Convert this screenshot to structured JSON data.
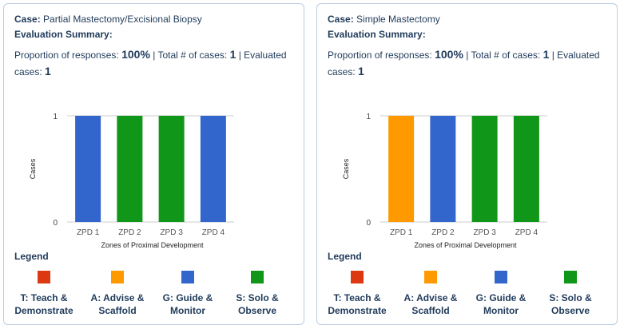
{
  "cards": [
    {
      "case_label": "Case:",
      "case_name": "Partial Mastectomy/Excisional Biopsy",
      "eval_title": "Evaluation Summary:",
      "stats": {
        "proportion_label": "Proportion of responses:",
        "proportion_value": "100%",
        "sep1": "|",
        "total_label": "Total # of cases:",
        "total_value": "1",
        "sep2": "|",
        "evaluated_label": "Evaluated cases:",
        "evaluated_value": "1"
      },
      "legend_title": "Legend"
    },
    {
      "case_label": "Case:",
      "case_name": "Simple Mastectomy",
      "eval_title": "Evaluation Summary:",
      "stats": {
        "proportion_label": "Proportion of responses:",
        "proportion_value": "100%",
        "sep1": "|",
        "total_label": "Total # of cases:",
        "total_value": "1",
        "sep2": "|",
        "evaluated_label": "Evaluated cases:",
        "evaluated_value": "1"
      },
      "legend_title": "Legend"
    }
  ],
  "legend_items": [
    {
      "label_line1": "T: Teach &",
      "label_line2": "Demonstrate",
      "color": "#dc3912"
    },
    {
      "label_line1": "A: Advise &",
      "label_line2": "Scaffold",
      "color": "#ff9900"
    },
    {
      "label_line1": "G: Guide &",
      "label_line2": "Monitor",
      "color": "#3366cc"
    },
    {
      "label_line1": "S: Solo &",
      "label_line2": "Observe",
      "color": "#109618"
    }
  ],
  "chart_data": [
    {
      "type": "bar",
      "categories": [
        "ZPD 1",
        "ZPD 2",
        "ZPD 3",
        "ZPD 4"
      ],
      "values": [
        1,
        1,
        1,
        1
      ],
      "bar_colors": [
        "#3366cc",
        "#109618",
        "#109618",
        "#3366cc"
      ],
      "xlabel": "Zones of Proximal Development",
      "ylabel": "Cases",
      "yticks": [
        0,
        1
      ],
      "ylim": [
        0,
        1
      ],
      "grid": true
    },
    {
      "type": "bar",
      "categories": [
        "ZPD 1",
        "ZPD 2",
        "ZPD 3",
        "ZPD 4"
      ],
      "values": [
        1,
        1,
        1,
        1
      ],
      "bar_colors": [
        "#ff9900",
        "#3366cc",
        "#109618",
        "#109618"
      ],
      "xlabel": "Zones of Proximal Development",
      "ylabel": "Cases",
      "yticks": [
        0,
        1
      ],
      "ylim": [
        0,
        1
      ],
      "grid": true
    }
  ]
}
